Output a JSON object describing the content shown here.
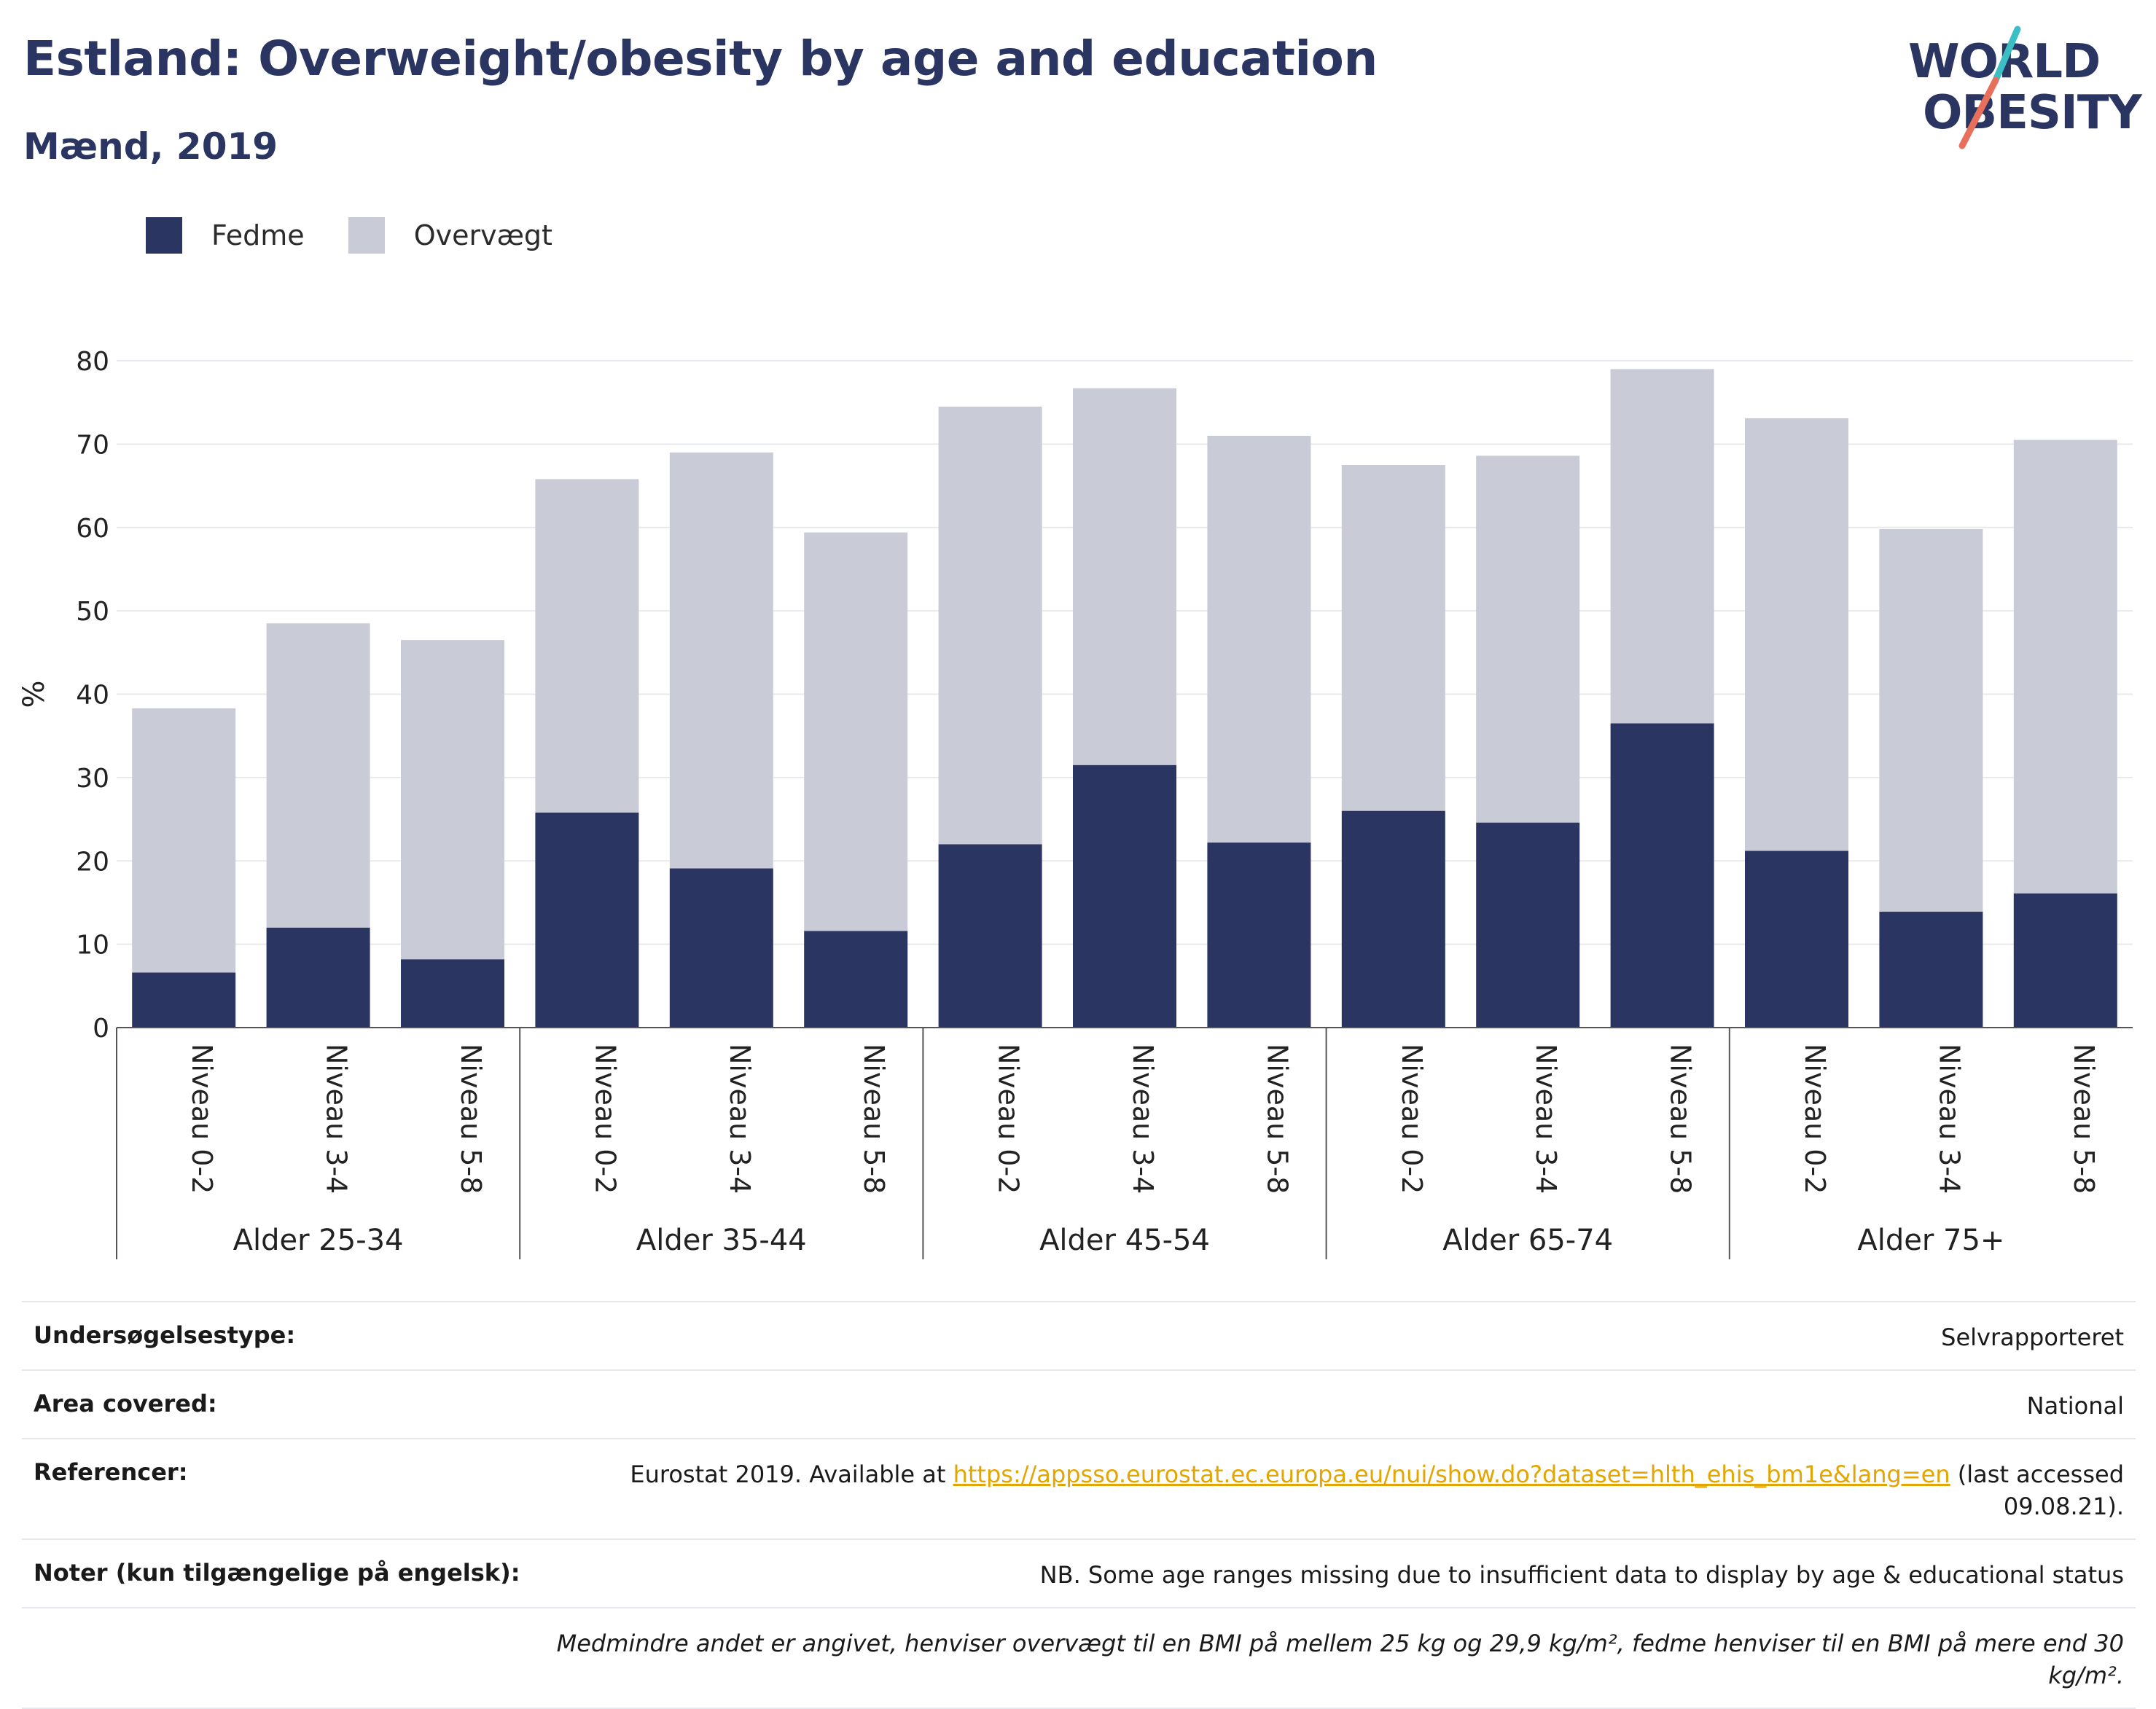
{
  "header": {
    "title": "Estland: Overweight/obesity by age and education",
    "subtitle": "Mænd, 2019"
  },
  "logo": {
    "line1": "WORLD",
    "line2": "OBESITY",
    "accent_teal": "#3bbfc4",
    "accent_coral": "#e8705b"
  },
  "colors": {
    "fedme": "#2a3562",
    "overvaegt": "#c9cbd6",
    "grid": "#e8e9ee",
    "axis": "#555555"
  },
  "chart_data": {
    "type": "bar",
    "stacked": true,
    "ylabel": "%",
    "ylim": [
      0,
      80
    ],
    "yticks": [
      0,
      10,
      20,
      30,
      40,
      50,
      60,
      70,
      80
    ],
    "legend": [
      "Fedme",
      "Overvægt"
    ],
    "legend_position": "top-left",
    "grid": true,
    "groups": [
      {
        "label": "Alder 25-34",
        "categories": [
          "Niveau 0-2",
          "Niveau 3-4",
          "Niveau 5-8"
        ]
      },
      {
        "label": "Alder 35-44",
        "categories": [
          "Niveau 0-2",
          "Niveau 3-4",
          "Niveau 5-8"
        ]
      },
      {
        "label": "Alder 45-54",
        "categories": [
          "Niveau 0-2",
          "Niveau 3-4",
          "Niveau 5-8"
        ]
      },
      {
        "label": "Alder 65-74",
        "categories": [
          "Niveau 0-2",
          "Niveau 3-4",
          "Niveau 5-8"
        ]
      },
      {
        "label": "Alder 75+",
        "categories": [
          "Niveau 0-2",
          "Niveau 3-4",
          "Niveau 5-8"
        ]
      }
    ],
    "series": [
      {
        "name": "Fedme",
        "values": [
          6.6,
          12.0,
          8.2,
          25.8,
          19.1,
          11.6,
          22.0,
          31.5,
          22.2,
          26.0,
          24.6,
          36.5,
          21.2,
          13.9,
          16.1
        ]
      },
      {
        "name": "Overvægt",
        "values": [
          31.7,
          36.5,
          38.3,
          40.0,
          49.9,
          47.8,
          52.5,
          45.2,
          48.8,
          41.5,
          44.0,
          42.5,
          51.9,
          45.9,
          54.4
        ]
      }
    ]
  },
  "info": {
    "survey_type_label": "Undersøgelsestype:",
    "survey_type_value": "Selvrapporteret",
    "area_label": "Area covered:",
    "area_value": "National",
    "refs_label": "Referencer:",
    "refs_prefix": "Eurostat 2019. Available at ",
    "refs_link": "https://appsso.eurostat.ec.europa.eu/nui/show.do?dataset=hlth_ehis_bm1e&lang=en",
    "refs_suffix": " (last accessed 09.08.21).",
    "notes_label": "Noter (kun tilgængelige på engelsk):",
    "notes_value": "NB. Some age ranges missing due to insufficient data to display by age & educational status",
    "footnote": "Medmindre andet er angivet, henviser overvægt til en BMI på mellem 25 kg og 29,9 kg/m², fedme henviser til en BMI på mere end 30 kg/m²."
  }
}
